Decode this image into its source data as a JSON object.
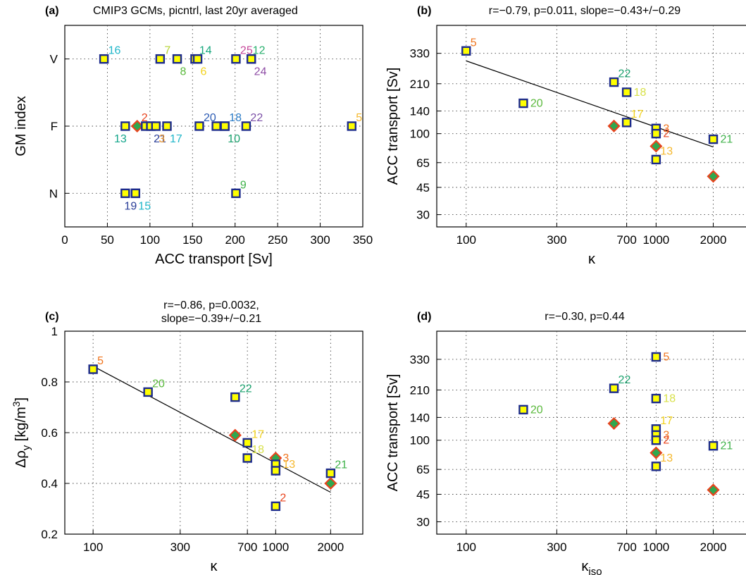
{
  "colors": {
    "marker_edge": "#1c2b8c",
    "marker_fill": "#ffff00",
    "diamond_fill": "#2fa84f",
    "diamond_edge": "#e8421c",
    "grid": "#444444",
    "line": "#000000"
  },
  "chart_data": [
    {
      "id": "a",
      "type": "scatter",
      "panel_label": "(a)",
      "title": "CMIP3 GCMs, picntrl, last 20yr averaged",
      "xlabel": "ACC transport [Sv]",
      "ylabel": "GM index",
      "xscale": "linear",
      "xlim": [
        0,
        350
      ],
      "xticks": [
        0,
        50,
        100,
        150,
        200,
        250,
        300,
        350
      ],
      "xtick_labels": [
        "0",
        "50",
        "100",
        "150",
        "200",
        "250",
        "300",
        "350"
      ],
      "ylim": [
        0.5,
        3.5
      ],
      "yticks": [
        1,
        2,
        3
      ],
      "ytick_labels": [
        "N",
        "F",
        "V"
      ],
      "grid": true,
      "points": [
        {
          "x": 46,
          "y": 3,
          "marker": "square",
          "label": "16",
          "label_color": "#1fb6c9",
          "label_pos": "above-right"
        },
        {
          "x": 112,
          "y": 3,
          "marker": "square",
          "label": "7",
          "label_color": "#b5d334",
          "label_pos": "above-right"
        },
        {
          "x": 132,
          "y": 3,
          "marker": "square",
          "label": "8",
          "label_color": "#5ab93c",
          "label_pos": "below-right"
        },
        {
          "x": 153,
          "y": 3,
          "marker": "square",
          "label": "14",
          "label_color": "#18a87e",
          "label_pos": "above-right"
        },
        {
          "x": 156,
          "y": 3,
          "marker": "square",
          "label": "6",
          "label_color": "#f2d21e",
          "label_pos": "below-right"
        },
        {
          "x": 201,
          "y": 3,
          "marker": "square",
          "label": "25",
          "label_color": "#c6489a",
          "label_pos": "above-right"
        },
        {
          "x": 219,
          "y": 3,
          "marker": "square",
          "label": "12",
          "label_color": "#29b06e",
          "label_pos": "above-left"
        },
        {
          "x": 219,
          "y": 3,
          "marker": "square",
          "label": "24",
          "label_color": "#8f4ea6",
          "label_pos": "below-right"
        },
        {
          "x": 71,
          "y": 2,
          "marker": "square",
          "label": "13",
          "label_color": "#12a58a",
          "label_pos": "below-left"
        },
        {
          "x": 85,
          "y": 2,
          "marker": "diamond",
          "label": "2",
          "label_color": "#e8421c",
          "label_pos": "above-right"
        },
        {
          "x": 95,
          "y": 2,
          "marker": "square",
          "label": "",
          "label_color": "#000000",
          "label_pos": "none"
        },
        {
          "x": 101,
          "y": 2,
          "marker": "square",
          "label": "21",
          "label_color": "#2a3e98",
          "label_pos": "below-right"
        },
        {
          "x": 107,
          "y": 2,
          "marker": "square",
          "label": "3",
          "label_color": "#f39a2a",
          "label_pos": "below-right"
        },
        {
          "x": 120,
          "y": 2,
          "marker": "square",
          "label": "17",
          "label_color": "#1fb6c9",
          "label_pos": "below-right"
        },
        {
          "x": 158,
          "y": 2,
          "marker": "square",
          "label": "20",
          "label_color": "#2a5ab3",
          "label_pos": "above-right"
        },
        {
          "x": 178,
          "y": 2,
          "marker": "square",
          "label": "",
          "label_color": "#000000",
          "label_pos": "none"
        },
        {
          "x": 188,
          "y": 2,
          "marker": "square",
          "label": "10",
          "label_color": "#19a06c",
          "label_pos": "below-right"
        },
        {
          "x": 188,
          "y": 2,
          "marker": "square",
          "label": "18",
          "label_color": "#2b7bc7",
          "label_pos": "above-right"
        },
        {
          "x": 213,
          "y": 2,
          "marker": "square",
          "label": "22",
          "label_color": "#7a4ea6",
          "label_pos": "above-right"
        },
        {
          "x": 337,
          "y": 2,
          "marker": "square",
          "label": "5",
          "label_color": "#f5b82e",
          "label_pos": "above-right"
        },
        {
          "x": 71,
          "y": 1,
          "marker": "square",
          "label": "",
          "label_color": "#000000",
          "label_pos": "none"
        },
        {
          "x": 83,
          "y": 1,
          "marker": "square",
          "label": "19",
          "label_color": "#2a3e98",
          "label_pos": "below-left"
        },
        {
          "x": 83,
          "y": 1,
          "marker": "square",
          "label": "15",
          "label_color": "#1fb6c9",
          "label_pos": "below-right"
        },
        {
          "x": 201,
          "y": 1,
          "marker": "square",
          "label": "9",
          "label_color": "#3fb24a",
          "label_pos": "above-right"
        }
      ]
    },
    {
      "id": "b",
      "type": "scatter",
      "panel_label": "(b)",
      "title": "r=−0.79, p=0.011, slope=−0.43+/−0.29",
      "xlabel": "κ",
      "ylabel": "ACC transport [Sv]",
      "xscale": "log",
      "yscale": "log",
      "xlim": [
        70,
        3000
      ],
      "xticks": [
        100,
        300,
        700,
        1000,
        2000
      ],
      "xtick_labels": [
        "100",
        "300",
        "700",
        "1000",
        "2000"
      ],
      "ylim": [
        25,
        500
      ],
      "yticks": [
        30,
        45,
        65,
        100,
        140,
        210,
        330
      ],
      "ytick_labels": [
        "30",
        "45",
        "65",
        "100",
        "140",
        "210",
        "330"
      ],
      "grid": true,
      "fit": {
        "x": [
          100,
          2000
        ],
        "y": [
          295,
          82
        ]
      },
      "points": [
        {
          "x": 100,
          "y": 342,
          "marker": "square",
          "label": "5",
          "label_color": "#f0751e",
          "label_pos": "above-right"
        },
        {
          "x": 200,
          "y": 157,
          "marker": "square",
          "label": "20",
          "label_color": "#5ab93c",
          "label_pos": "right"
        },
        {
          "x": 600,
          "y": 215,
          "marker": "square",
          "label": "22",
          "label_color": "#19a06c",
          "label_pos": "above-right"
        },
        {
          "x": 700,
          "y": 185,
          "marker": "square",
          "label": "18",
          "label_color": "#d8e14a",
          "label_pos": "right"
        },
        {
          "x": 700,
          "y": 118,
          "marker": "square",
          "label": "17",
          "label_color": "#f2d21e",
          "label_pos": "above-right"
        },
        {
          "x": 600,
          "y": 112,
          "marker": "diamond",
          "label": "",
          "label_color": "#000000",
          "label_pos": "none"
        },
        {
          "x": 1000,
          "y": 108,
          "marker": "square",
          "label": "3",
          "label_color": "#f0751e",
          "label_pos": "right"
        },
        {
          "x": 1000,
          "y": 100,
          "marker": "square",
          "label": "2",
          "label_color": "#e8421c",
          "label_pos": "right"
        },
        {
          "x": 1000,
          "y": 83,
          "marker": "diamond",
          "label": "",
          "label_color": "#000000",
          "label_pos": "none"
        },
        {
          "x": 1000,
          "y": 68,
          "marker": "square",
          "label": "13",
          "label_color": "#f5b82e",
          "label_pos": "above-right"
        },
        {
          "x": 2000,
          "y": 92,
          "marker": "square",
          "label": "21",
          "label_color": "#3fb24a",
          "label_pos": "right"
        },
        {
          "x": 2000,
          "y": 53,
          "marker": "diamond",
          "label": "",
          "label_color": "#000000",
          "label_pos": "none"
        }
      ]
    },
    {
      "id": "c",
      "type": "scatter",
      "panel_label": "(c)",
      "title": "r=−0.86, p=0.0032,",
      "title2": "slope=−0.39+/−0.21",
      "xlabel": "κ",
      "ylabel": "Δρ",
      "ylabel_sub": "y",
      "ylabel_unit": " [kg/m",
      "ylabel_sup": "3",
      "ylabel_end": "]",
      "xscale": "log",
      "yscale": "linear",
      "xlim": [
        70,
        3000
      ],
      "xticks": [
        100,
        300,
        700,
        1000,
        2000
      ],
      "xtick_labels": [
        "100",
        "300",
        "700",
        "1000",
        "2000"
      ],
      "ylim": [
        0.2,
        1.0
      ],
      "yticks": [
        0.2,
        0.4,
        0.6,
        0.8,
        1.0
      ],
      "ytick_labels": [
        "0.2",
        "0.4",
        "0.6",
        "0.8",
        "1"
      ],
      "grid": true,
      "fit": {
        "x": [
          100,
          2000
        ],
        "y": [
          0.862,
          0.365
        ]
      },
      "points": [
        {
          "x": 100,
          "y": 0.85,
          "marker": "square",
          "label": "5",
          "label_color": "#f0751e",
          "label_pos": "above-right"
        },
        {
          "x": 200,
          "y": 0.76,
          "marker": "square",
          "label": "20",
          "label_color": "#5ab93c",
          "label_pos": "above-right"
        },
        {
          "x": 600,
          "y": 0.74,
          "marker": "square",
          "label": "22",
          "label_color": "#19a06c",
          "label_pos": "above-right"
        },
        {
          "x": 600,
          "y": 0.59,
          "marker": "diamond",
          "label": "",
          "label_color": "#000000",
          "label_pos": "none"
        },
        {
          "x": 700,
          "y": 0.56,
          "marker": "square",
          "label": "17",
          "label_color": "#f2d21e",
          "label_pos": "above-right"
        },
        {
          "x": 700,
          "y": 0.5,
          "marker": "square",
          "label": "18",
          "label_color": "#d8e14a",
          "label_pos": "above-right"
        },
        {
          "x": 1000,
          "y": 0.5,
          "marker": "diamond",
          "label": "3",
          "label_color": "#f0751e",
          "label_pos": "right"
        },
        {
          "x": 1000,
          "y": 0.475,
          "marker": "square",
          "label": "13",
          "label_color": "#f5b82e",
          "label_pos": "right"
        },
        {
          "x": 1000,
          "y": 0.45,
          "marker": "square",
          "label": "",
          "label_color": "#000000",
          "label_pos": "none"
        },
        {
          "x": 1000,
          "y": 0.31,
          "marker": "square",
          "label": "2",
          "label_color": "#e8421c",
          "label_pos": "above-right"
        },
        {
          "x": 2000,
          "y": 0.44,
          "marker": "square",
          "label": "21",
          "label_color": "#3fb24a",
          "label_pos": "above-right"
        },
        {
          "x": 2000,
          "y": 0.4,
          "marker": "diamond",
          "label": "",
          "label_color": "#000000",
          "label_pos": "none"
        }
      ]
    },
    {
      "id": "d",
      "type": "scatter",
      "panel_label": "(d)",
      "title": "r=−0.30, p=0.44",
      "xlabel": "κ",
      "xlabel_sub": "iso",
      "ylabel": "ACC transport [Sv]",
      "xscale": "log",
      "yscale": "log",
      "xlim": [
        70,
        3000
      ],
      "xticks": [
        100,
        300,
        700,
        1000,
        2000
      ],
      "xtick_labels": [
        "100",
        "300",
        "700",
        "1000",
        "2000"
      ],
      "ylim": [
        25,
        500
      ],
      "yticks": [
        30,
        45,
        65,
        100,
        140,
        210,
        330
      ],
      "ytick_labels": [
        "30",
        "45",
        "65",
        "100",
        "140",
        "210",
        "330"
      ],
      "grid": true,
      "points": [
        {
          "x": 1000,
          "y": 342,
          "marker": "square",
          "label": "5",
          "label_color": "#f0751e",
          "label_pos": "right"
        },
        {
          "x": 200,
          "y": 157,
          "marker": "square",
          "label": "20",
          "label_color": "#5ab93c",
          "label_pos": "right"
        },
        {
          "x": 600,
          "y": 215,
          "marker": "square",
          "label": "22",
          "label_color": "#19a06c",
          "label_pos": "above-right"
        },
        {
          "x": 600,
          "y": 128,
          "marker": "diamond",
          "label": "",
          "label_color": "#000000",
          "label_pos": "none"
        },
        {
          "x": 1000,
          "y": 185,
          "marker": "square",
          "label": "18",
          "label_color": "#d8e14a",
          "label_pos": "right"
        },
        {
          "x": 1000,
          "y": 118,
          "marker": "square",
          "label": "17",
          "label_color": "#f2d21e",
          "label_pos": "above-right"
        },
        {
          "x": 1000,
          "y": 108,
          "marker": "square",
          "label": "3",
          "label_color": "#f0751e",
          "label_pos": "right"
        },
        {
          "x": 1000,
          "y": 100,
          "marker": "square",
          "label": "2",
          "label_color": "#e8421c",
          "label_pos": "right"
        },
        {
          "x": 1000,
          "y": 83,
          "marker": "diamond",
          "label": "",
          "label_color": "#000000",
          "label_pos": "none"
        },
        {
          "x": 1000,
          "y": 68,
          "marker": "square",
          "label": "13",
          "label_color": "#f5b82e",
          "label_pos": "above-right"
        },
        {
          "x": 2000,
          "y": 92,
          "marker": "square",
          "label": "21",
          "label_color": "#3fb24a",
          "label_pos": "right"
        },
        {
          "x": 2000,
          "y": 48,
          "marker": "diamond",
          "label": "",
          "label_color": "#000000",
          "label_pos": "none"
        }
      ]
    }
  ]
}
